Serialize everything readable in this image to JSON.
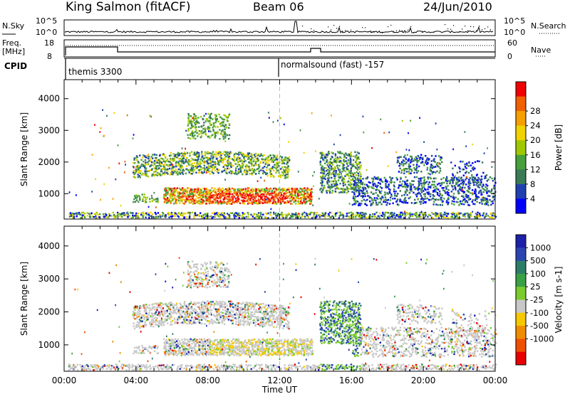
{
  "header": {
    "station": "King Salmon (fitACF)",
    "beam": "Beam 06",
    "date": "24/Jun/2010"
  },
  "strip_labels": {
    "nsky": "N.Sky",
    "nsky_tick_top": "10^5",
    "nsky_tick_bottom": "10^0",
    "nsearch": "N.Search",
    "nsearch_tick_top": "10^5",
    "nsearch_tick_bottom": "10^0",
    "freq": "Freq.",
    "freq_unit": "[MHz]",
    "freq_tick_top": "18",
    "freq_tick_bottom": "8",
    "nave": "Nave",
    "nave_tick_top": "60",
    "nave_tick_bottom": "0",
    "cpid": "CPID",
    "cpid_mode1": "themis 3300",
    "cpid_mode2": "normalsound (fast) -157"
  },
  "colors": {
    "power": [
      "#0000ff",
      "#2040b0",
      "#3a7a55",
      "#46a03c",
      "#a0c800",
      "#f0d200",
      "#f5a000",
      "#f06000",
      "#f00000"
    ],
    "velocity": [
      "#1d20a8",
      "#2a45b0",
      "#2c7d67",
      "#3aa045",
      "#7acc2c",
      "#c8c8c8",
      "#f5c800",
      "#f08c00",
      "#ee5000",
      "#e80000"
    ]
  },
  "chart_data": [
    {
      "type": "heatmap",
      "name": "power",
      "xlabel": "",
      "ylabel": "Slant Range [km]",
      "xlim": [
        0,
        24
      ],
      "ylim": [
        200,
        4600
      ],
      "yticks": [
        "1000",
        "2000",
        "3000",
        "4000"
      ],
      "colorbar_label": "Power [dB]",
      "colorbar_ticks": [
        "4",
        "8",
        "12",
        "16",
        "20",
        "24",
        "28"
      ],
      "vline_hour": 12
    },
    {
      "type": "heatmap",
      "name": "velocity",
      "xlabel": "Time UT",
      "ylabel": "Slant Range [km]",
      "xlim": [
        0,
        24
      ],
      "ylim": [
        200,
        4600
      ],
      "xticks": [
        "00:00",
        "04:00",
        "08:00",
        "12:00",
        "16:00",
        "20:00",
        "00:00"
      ],
      "yticks": [
        "1000",
        "2000",
        "3000",
        "4000"
      ],
      "colorbar_label": "Velocity [m s-1]",
      "colorbar_ticks": [
        "1000",
        "500",
        "100",
        "25",
        "-25",
        "-100",
        "-500",
        "-1000"
      ],
      "vline_hour": 12
    }
  ]
}
